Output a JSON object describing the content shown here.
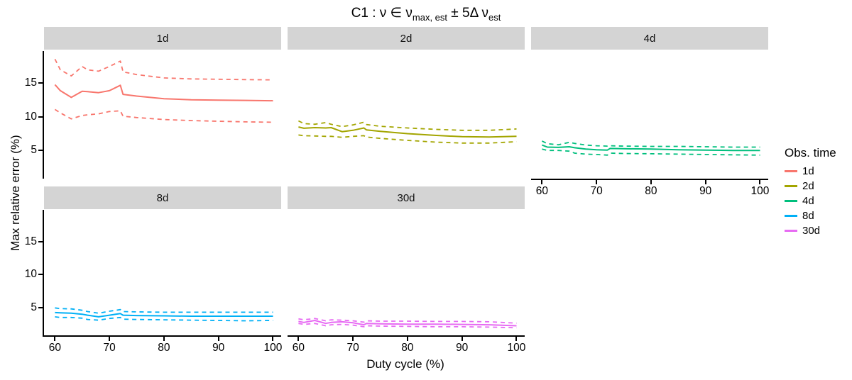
{
  "title": {
    "part1": "C1 :  ν ∈ ν",
    "sub1": "max, est",
    "part2": " ± 5Δ ν",
    "sub2": "est"
  },
  "axes": {
    "x_label": "Duty cycle (%)",
    "y_label": "Max relative error (%)"
  },
  "legend": {
    "title": "Obs. time",
    "items": [
      {
        "label": "1d",
        "color": "#F8766D"
      },
      {
        "label": "2d",
        "color": "#A3A500"
      },
      {
        "label": "4d",
        "color": "#00BF7D"
      },
      {
        "label": "8d",
        "color": "#00B0F6"
      },
      {
        "label": "30d",
        "color": "#E76BF3"
      }
    ]
  },
  "chart_data": {
    "type": "line",
    "title": "C1 : nu in nu_max,est +/- 5*delta_nu_est",
    "xlabel": "Duty cycle (%)",
    "ylabel": "Max relative error (%)",
    "legend_title": "Obs. time",
    "legend_position": "right",
    "grid": false,
    "xlim": [
      58,
      101.5
    ],
    "ylim": [
      0.8,
      19.8
    ],
    "x_ticks": [
      60,
      70,
      80,
      90,
      100
    ],
    "y_ticks": [
      5,
      10,
      15
    ],
    "x": [
      60,
      61,
      63,
      65,
      66,
      68,
      70,
      72,
      72.5,
      75,
      80,
      85,
      90,
      95,
      100
    ],
    "band_style": "dashed",
    "facets": [
      {
        "label": "1d",
        "color": "#F8766D",
        "row": 0,
        "col": 0,
        "y_axis": true,
        "x_axis": false,
        "mean": [
          14.8,
          13.9,
          12.9,
          13.8,
          13.75,
          13.6,
          13.9,
          14.7,
          13.35,
          13.1,
          12.7,
          12.55,
          12.5,
          12.45,
          12.4
        ],
        "upper": [
          18.6,
          17.0,
          16.1,
          17.5,
          17.0,
          16.8,
          17.5,
          18.3,
          16.7,
          16.3,
          15.8,
          15.65,
          15.6,
          15.55,
          15.5
        ],
        "lower": [
          11.1,
          10.6,
          9.7,
          10.2,
          10.3,
          10.45,
          10.8,
          10.9,
          10.1,
          9.9,
          9.6,
          9.45,
          9.35,
          9.25,
          9.2
        ]
      },
      {
        "label": "2d",
        "color": "#A3A500",
        "row": 0,
        "col": 1,
        "y_axis": false,
        "x_axis": false,
        "mean": [
          8.5,
          8.3,
          8.4,
          8.35,
          8.4,
          7.8,
          8.0,
          8.35,
          8.05,
          7.85,
          7.5,
          7.25,
          7.05,
          7.0,
          7.1
        ],
        "upper": [
          9.4,
          9.0,
          8.9,
          9.15,
          8.9,
          8.55,
          8.8,
          9.2,
          8.85,
          8.6,
          8.35,
          8.15,
          8.0,
          8.0,
          8.2
        ],
        "lower": [
          7.3,
          7.2,
          7.15,
          7.1,
          7.1,
          6.95,
          7.1,
          7.2,
          7.0,
          6.8,
          6.5,
          6.25,
          6.1,
          6.1,
          6.3
        ]
      },
      {
        "label": "4d",
        "color": "#00BF7D",
        "row": 0,
        "col": 2,
        "y_axis": false,
        "x_axis": true,
        "mean": [
          5.8,
          5.5,
          5.45,
          5.55,
          5.4,
          5.2,
          5.1,
          5.05,
          5.3,
          5.25,
          5.2,
          5.1,
          5.05,
          5.0,
          5.0
        ],
        "upper": [
          6.4,
          6.0,
          5.85,
          6.2,
          6.05,
          5.8,
          5.7,
          5.65,
          5.7,
          5.65,
          5.6,
          5.6,
          5.55,
          5.5,
          5.5
        ],
        "lower": [
          5.2,
          5.0,
          5.0,
          4.9,
          4.6,
          4.45,
          4.4,
          4.3,
          4.6,
          4.55,
          4.5,
          4.45,
          4.4,
          4.35,
          4.3
        ]
      },
      {
        "label": "8d",
        "color": "#00B0F6",
        "row": 1,
        "col": 0,
        "y_axis": true,
        "x_axis": true,
        "mean": [
          4.25,
          4.2,
          4.15,
          4.0,
          3.85,
          3.6,
          3.85,
          4.1,
          3.85,
          3.8,
          3.75,
          3.7,
          3.7,
          3.7,
          3.7
        ],
        "upper": [
          4.95,
          4.85,
          4.8,
          4.6,
          4.4,
          4.15,
          4.45,
          4.7,
          4.4,
          4.35,
          4.3,
          4.3,
          4.3,
          4.3,
          4.3
        ],
        "lower": [
          3.6,
          3.5,
          3.5,
          3.4,
          3.2,
          3.1,
          3.35,
          3.5,
          3.25,
          3.2,
          3.15,
          3.1,
          3.05,
          3.0,
          3.05
        ]
      },
      {
        "label": "30d",
        "color": "#E76BF3",
        "row": 1,
        "col": 1,
        "y_axis": false,
        "x_axis": true,
        "mean": [
          2.9,
          2.75,
          3.05,
          2.6,
          2.75,
          2.85,
          2.7,
          2.4,
          2.6,
          2.55,
          2.5,
          2.5,
          2.45,
          2.4,
          2.25
        ],
        "upper": [
          3.3,
          3.15,
          3.35,
          3.0,
          3.15,
          3.1,
          3.0,
          2.8,
          3.0,
          2.95,
          2.95,
          2.9,
          2.9,
          2.85,
          2.65
        ],
        "lower": [
          2.6,
          2.45,
          2.6,
          2.25,
          2.4,
          2.45,
          2.35,
          2.1,
          2.25,
          2.2,
          2.15,
          2.1,
          2.1,
          2.05,
          1.95
        ]
      }
    ]
  }
}
